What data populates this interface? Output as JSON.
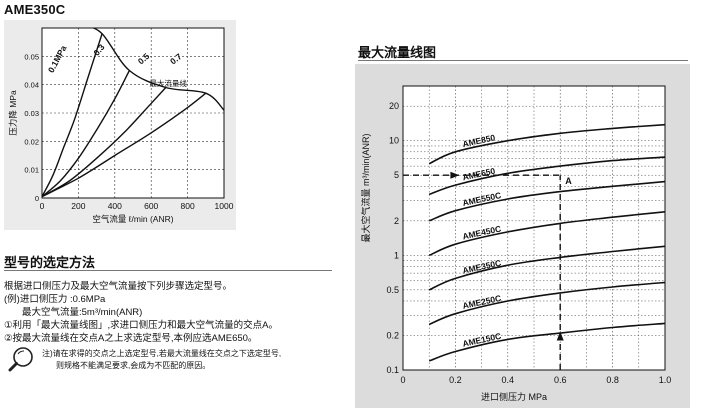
{
  "top_left_title": "AME350C",
  "selection_section": {
    "heading": "型号的选定方法",
    "lines": [
      "根据进口侧压力及最大空气流量按下列步骤选定型号。",
      "(例)进口侧压力 :0.6MPa",
      "最大空气流量:5m³/min(ANR)",
      "①利用「最大流量线图」,求进口侧压力和最大空气流量的交点A。",
      "②按最大流量线在交点A之上求选定型号,本例应选AME650。"
    ],
    "notes": [
      "注)请在求得的交点之上选定型号,若最大流量线在交点之下选定型号,",
      "则规格不能满足要求,会成为不匹配的原因。"
    ],
    "icon": "magnifier-icon"
  },
  "chart_data": [
    {
      "type": "line",
      "title": "",
      "xlabel": "空气流量 ℓ/min (ANR)",
      "ylabel": "压力降 MPa",
      "xlim": [
        0,
        1000
      ],
      "ylim": [
        0,
        0.06
      ],
      "x_ticks": [
        "0",
        "200",
        "400",
        "600",
        "800",
        "1000"
      ],
      "y_ticks": [
        "0",
        "0.01",
        "0.02",
        "0.03",
        "0.04",
        "0.05"
      ],
      "grid": true,
      "annotation": "最大流量线",
      "series": [
        {
          "name": "0.1MPa",
          "x": [
            0,
            60,
            120,
            180,
            250,
            300,
            330
          ],
          "y": [
            0.0005,
            0.008,
            0.018,
            0.028,
            0.042,
            0.052,
            0.058
          ]
        },
        {
          "name": "0.3",
          "x": [
            0,
            100,
            200,
            300,
            400,
            480
          ],
          "y": [
            0.0005,
            0.006,
            0.014,
            0.024,
            0.035,
            0.045
          ]
        },
        {
          "name": "0.5",
          "x": [
            0,
            150,
            300,
            450,
            580,
            680
          ],
          "y": [
            0.0005,
            0.006,
            0.014,
            0.023,
            0.032,
            0.039
          ]
        },
        {
          "name": "0.7",
          "x": [
            0,
            200,
            400,
            600,
            780,
            900
          ],
          "y": [
            0.0005,
            0.007,
            0.015,
            0.023,
            0.031,
            0.037
          ]
        },
        {
          "name": "最大流量线",
          "x": [
            230,
            330,
            480,
            680,
            900,
            1000
          ],
          "y": [
            0.061,
            0.058,
            0.045,
            0.039,
            0.037,
            0.031
          ]
        }
      ]
    },
    {
      "type": "line",
      "title": "最大流量线图",
      "xlabel": "进口侧压力 MPa",
      "ylabel": "最大空气流量 m³/min(ANR)",
      "xlim": [
        0,
        1.0
      ],
      "ylim": [
        0.1,
        30
      ],
      "y_scale": "log",
      "x_ticks": [
        "0",
        "0.2",
        "0.4",
        "0.6",
        "0.8",
        "1.0"
      ],
      "y_ticks": [
        "0.1",
        "0.2",
        "0.5",
        "1",
        "2",
        "5",
        "10",
        "20"
      ],
      "grid": true,
      "annotation": "A",
      "example_point": {
        "x": 0.6,
        "y": 5
      },
      "series": [
        {
          "name": "AME850",
          "x": [
            0.1,
            0.2,
            0.4,
            0.6,
            0.8,
            1.0
          ],
          "y": [
            6.3,
            8.0,
            10.0,
            11.6,
            12.8,
            13.8
          ]
        },
        {
          "name": "AME650",
          "x": [
            0.1,
            0.2,
            0.4,
            0.6,
            0.8,
            1.0
          ],
          "y": [
            3.4,
            4.1,
            5.2,
            6.0,
            6.7,
            7.2
          ]
        },
        {
          "name": "AME550C",
          "x": [
            0.1,
            0.2,
            0.4,
            0.6,
            0.8,
            1.0
          ],
          "y": [
            2.0,
            2.45,
            3.1,
            3.6,
            4.0,
            4.4
          ]
        },
        {
          "name": "AME450C",
          "x": [
            0.1,
            0.2,
            0.4,
            0.6,
            0.8,
            1.0
          ],
          "y": [
            1.0,
            1.25,
            1.6,
            1.9,
            2.15,
            2.4
          ]
        },
        {
          "name": "AME350C",
          "x": [
            0.1,
            0.2,
            0.4,
            0.6,
            0.8,
            1.0
          ],
          "y": [
            0.5,
            0.63,
            0.82,
            0.96,
            1.08,
            1.2
          ]
        },
        {
          "name": "AME250C",
          "x": [
            0.1,
            0.2,
            0.4,
            0.6,
            0.8,
            1.0
          ],
          "y": [
            0.25,
            0.31,
            0.4,
            0.47,
            0.53,
            0.58
          ]
        },
        {
          "name": "AME150C",
          "x": [
            0.1,
            0.2,
            0.4,
            0.6,
            0.8,
            1.0
          ],
          "y": [
            0.12,
            0.145,
            0.185,
            0.21,
            0.235,
            0.255
          ]
        }
      ]
    }
  ]
}
